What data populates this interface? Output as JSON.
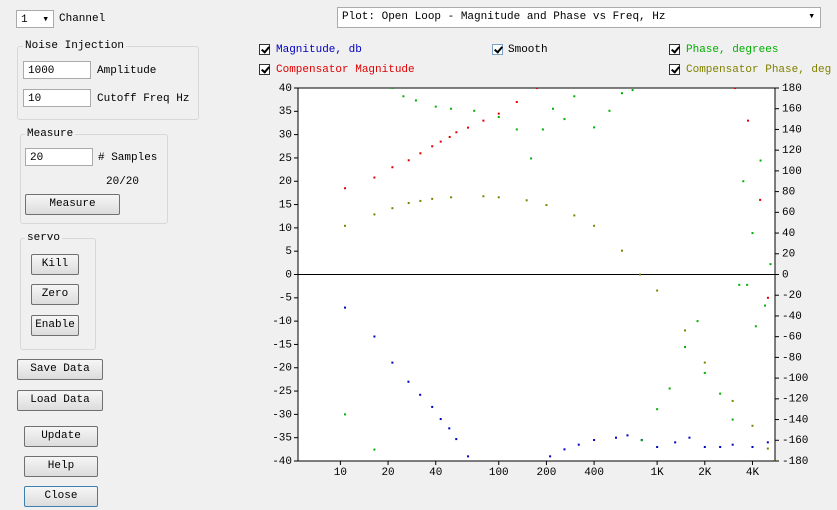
{
  "channel": {
    "value": "1",
    "label": "Channel"
  },
  "noise_injection": {
    "title": "Noise Injection",
    "amplitude": {
      "value": "1000",
      "label": "Amplitude"
    },
    "cutoff": {
      "value": "10",
      "label": "Cutoff Freq Hz"
    }
  },
  "measure": {
    "title": "Measure",
    "samples": {
      "value": "20",
      "label": "# Samples"
    },
    "progress": "20/20",
    "button": "Measure"
  },
  "servo": {
    "title": "servo",
    "buttons": [
      "Kill",
      "Zero",
      "Enable"
    ]
  },
  "buttons": [
    "Save Data",
    "Load Data",
    "Update",
    "Help",
    "Close"
  ],
  "plot_select": "Plot: Open Loop - Magnitude and Phase vs Freq, Hz",
  "smooth": {
    "label": "Smooth",
    "checked": true
  },
  "chart_data": {
    "type": "scatter",
    "xlog": true,
    "xlim": [
      5.4,
      5550
    ],
    "xticks": [
      10,
      20,
      40,
      100,
      200,
      400,
      {
        "value": 1000,
        "label": "1K"
      },
      {
        "value": 2000,
        "label": "2K"
      },
      {
        "value": 4000,
        "label": "4K"
      }
    ],
    "ylim": [
      -40,
      40
    ],
    "yticks": [
      -40,
      -35,
      -30,
      -25,
      -20,
      -15,
      -10,
      -5,
      0,
      5,
      10,
      15,
      20,
      25,
      30,
      35,
      40
    ],
    "y2lim": [
      -180,
      180
    ],
    "y2ticks": [
      -180,
      -160,
      -140,
      -120,
      -100,
      -80,
      -60,
      -40,
      -20,
      0,
      20,
      40,
      60,
      80,
      100,
      120,
      140,
      160,
      180
    ],
    "zero_line": true,
    "series": [
      {
        "name": "Magnitude, db",
        "color": "#0000c0",
        "checked": true,
        "x": [
          10.7,
          16.4,
          21.3,
          26.9,
          31.9,
          38,
          43,
          48.7,
          53.9,
          64,
          211,
          260,
          320,
          400,
          550,
          650,
          800,
          1000,
          1300,
          1600,
          2000,
          2500,
          3000,
          4000,
          5000
        ],
        "values": [
          -7.1,
          -13.3,
          -18.9,
          -23,
          -25.8,
          -28.4,
          -31,
          -33,
          -35.3,
          -39,
          -39,
          -37.5,
          -36.5,
          -35.5,
          -35,
          -34.5,
          -35.5,
          -37,
          -36,
          -35,
          -37,
          -37,
          -36.5,
          -37,
          -36
        ]
      },
      {
        "name": "Compensator Magnitude",
        "color": "#e00000",
        "checked": true,
        "x": [
          10.7,
          16.4,
          21.3,
          27,
          32,
          38,
          43,
          49,
          54,
          64,
          80,
          100,
          130,
          174,
          3100,
          3750,
          4470,
          5010,
          5500
        ],
        "values": [
          18.5,
          20.8,
          23,
          24.5,
          26,
          27.5,
          28.5,
          29.5,
          30.5,
          31.5,
          33,
          34.5,
          37,
          40,
          40,
          33,
          16,
          -5,
          -40
        ]
      },
      {
        "name": "Phase, degrees",
        "color": "#00b000",
        "checked": true,
        "axis": "y2",
        "x": [
          10.7,
          16.4,
          21.3,
          25,
          30,
          40,
          50,
          70,
          100,
          130,
          160,
          190,
          220,
          260,
          300,
          400,
          500,
          600,
          700,
          800,
          1000,
          1200,
          1500,
          1800,
          2000,
          2500,
          3000,
          3300,
          3500,
          3700,
          4000,
          4200,
          4500,
          4800,
          5200
        ],
        "values": [
          -135,
          -169,
          180,
          172,
          168,
          162,
          160,
          158,
          152,
          140,
          112,
          140,
          160,
          150,
          172,
          142,
          158,
          175,
          178,
          -160,
          -130,
          -110,
          -70,
          -45,
          -95,
          -115,
          -140,
          -10,
          90,
          -10,
          40,
          -50,
          110,
          -30,
          10
        ]
      },
      {
        "name": "Compensator Phase, deg",
        "color": "#808000",
        "checked": true,
        "axis": "y2",
        "x": [
          10.7,
          16.4,
          21.3,
          27,
          32,
          38,
          50,
          80,
          100,
          150,
          200,
          300,
          400,
          600,
          780,
          1000,
          1500,
          2000,
          3000,
          4000,
          5000,
          5550
        ],
        "values": [
          47,
          58,
          64,
          69,
          71,
          73,
          74.5,
          75.5,
          74.5,
          71.6,
          67,
          57,
          47,
          23,
          0,
          -15.5,
          -54,
          -85,
          -122,
          -146,
          -168,
          -180
        ]
      }
    ]
  }
}
